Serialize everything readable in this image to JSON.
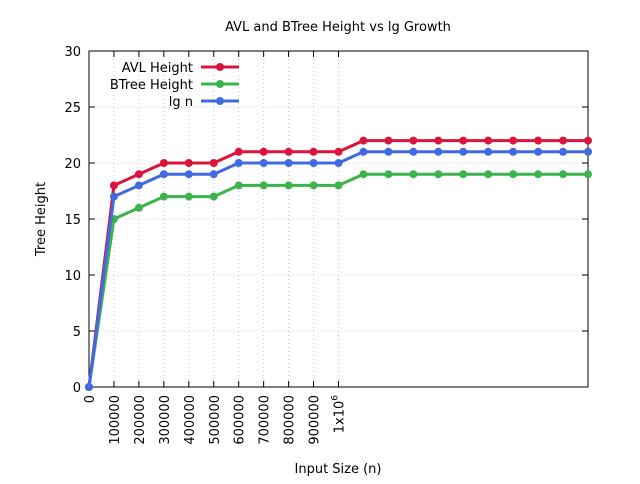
{
  "chart_data": {
    "type": "line",
    "title": "AVL and BTree Height vs lg Growth",
    "xlabel": "Input Size (n)",
    "ylabel": "Tree Height",
    "xlim": [
      0,
      2000000
    ],
    "ylim": [
      0,
      30
    ],
    "x_ticks": [
      {
        "value": 0,
        "label": "0"
      },
      {
        "value": 100000,
        "label": "100000"
      },
      {
        "value": 200000,
        "label": "200000"
      },
      {
        "value": 300000,
        "label": "300000"
      },
      {
        "value": 400000,
        "label": "400000"
      },
      {
        "value": 500000,
        "label": "500000"
      },
      {
        "value": 600000,
        "label": "600000"
      },
      {
        "value": 700000,
        "label": "700000"
      },
      {
        "value": 800000,
        "label": "800000"
      },
      {
        "value": 900000,
        "label": "900000"
      },
      {
        "value": 1000000,
        "label": "1x10",
        "sup": "6"
      }
    ],
    "y_ticks": [
      {
        "value": 0,
        "label": "0"
      },
      {
        "value": 5,
        "label": "5"
      },
      {
        "value": 10,
        "label": "10"
      },
      {
        "value": 15,
        "label": "15"
      },
      {
        "value": 20,
        "label": "20"
      },
      {
        "value": 25,
        "label": "25"
      },
      {
        "value": 30,
        "label": "30"
      }
    ],
    "grid": true,
    "legend_position": "top-left",
    "x": [
      0,
      100000,
      200000,
      300000,
      400000,
      500000,
      600000,
      700000,
      800000,
      900000,
      1000000,
      1100000,
      1200000,
      1300000,
      1400000,
      1500000,
      1600000,
      1700000,
      1800000,
      1900000,
      2000000
    ],
    "series": [
      {
        "name": "AVL Height",
        "color": "#dc143c",
        "values": [
          0,
          18,
          19,
          20,
          20,
          20,
          21,
          21,
          21,
          21,
          21,
          22,
          22,
          22,
          22,
          22,
          22,
          22,
          22,
          22,
          22
        ]
      },
      {
        "name": "BTree Height",
        "color": "#3cb44b",
        "values": [
          0,
          15,
          16,
          17,
          17,
          17,
          18,
          18,
          18,
          18,
          18,
          19,
          19,
          19,
          19,
          19,
          19,
          19,
          19,
          19,
          19
        ]
      },
      {
        "name": "lg n",
        "color": "#4169e1",
        "values": [
          0,
          17,
          18,
          19,
          19,
          19,
          20,
          20,
          20,
          20,
          20,
          21,
          21,
          21,
          21,
          21,
          21,
          21,
          21,
          21,
          21
        ]
      }
    ]
  }
}
